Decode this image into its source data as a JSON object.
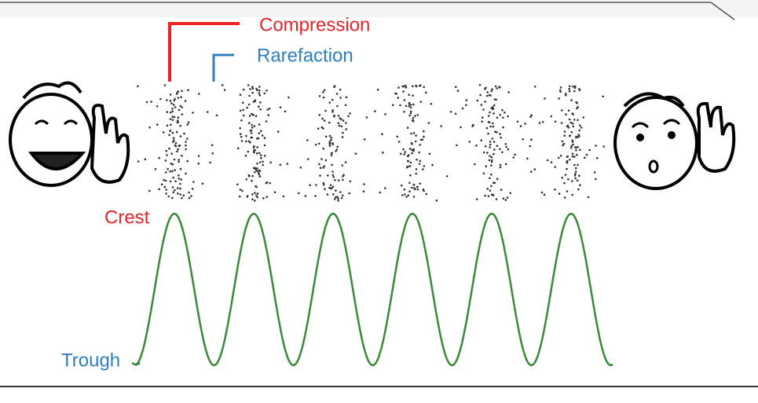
{
  "labels": {
    "compression": "Compression",
    "rarefaction": "Rarefaction",
    "crest": "Crest",
    "trough": "Trough"
  }
}
